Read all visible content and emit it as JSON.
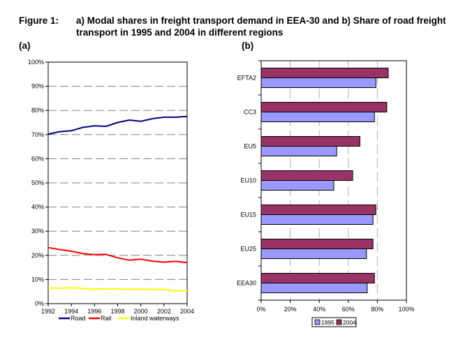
{
  "figure": {
    "label": "Figure 1:",
    "caption": "a) Modal shares in freight transport demand in EEA-30 and b) Share of road freight transport in 1995 and 2004 in different regions",
    "panel_a_label": "(a)",
    "panel_b_label": "(b)"
  },
  "chart_data": [
    {
      "type": "line",
      "title": "",
      "xlabel": "",
      "ylabel": "",
      "x": [
        1992,
        1993,
        1994,
        1995,
        1996,
        1997,
        1998,
        1999,
        2000,
        2001,
        2002,
        2003,
        2004
      ],
      "xticks": [
        "1992",
        "1994",
        "1996",
        "1998",
        "2000",
        "2002",
        "2004"
      ],
      "yticks": [
        "0%",
        "10%",
        "20%",
        "30%",
        "40%",
        "50%",
        "60%",
        "70%",
        "80%",
        "90%",
        "100%"
      ],
      "ylim": [
        0,
        100
      ],
      "grid": "horizontal dashed",
      "legend_position": "bottom",
      "series": [
        {
          "name": "Road",
          "color": "#000080",
          "values": [
            70.2,
            71.2,
            71.6,
            73.0,
            73.6,
            73.4,
            75.0,
            76.0,
            75.5,
            76.6,
            77.2,
            77.2,
            77.5
          ]
        },
        {
          "name": "Rail",
          "color": "#ff0000",
          "values": [
            23.2,
            22.4,
            21.7,
            20.7,
            20.3,
            20.4,
            19.0,
            18.0,
            18.4,
            17.6,
            17.2,
            17.5,
            17.0
          ]
        },
        {
          "name": "Inland waterways",
          "color": "#ffff00",
          "values": [
            6.5,
            6.4,
            6.6,
            6.3,
            6.0,
            6.1,
            6.1,
            5.9,
            6.0,
            5.9,
            5.8,
            5.3,
            5.4
          ]
        }
      ]
    },
    {
      "type": "bar",
      "orientation": "horizontal",
      "title": "",
      "xlabel": "",
      "ylabel": "",
      "categories": [
        "EFTA2",
        "CC3",
        "EU5",
        "EU10",
        "EU15",
        "EU25",
        "EEA30"
      ],
      "xticks": [
        "0%",
        "20%",
        "40%",
        "60%",
        "80%",
        "100%"
      ],
      "xlim": [
        0,
        100
      ],
      "grid": "vertical dashed",
      "legend_position": "bottom",
      "series": [
        {
          "name": "1995",
          "color": "#9999ff",
          "values": [
            79,
            78,
            52,
            50,
            77,
            72.5,
            73
          ]
        },
        {
          "name": "2004",
          "color": "#993366",
          "values": [
            87.5,
            86.5,
            68,
            63,
            79,
            77,
            78
          ]
        }
      ]
    }
  ]
}
